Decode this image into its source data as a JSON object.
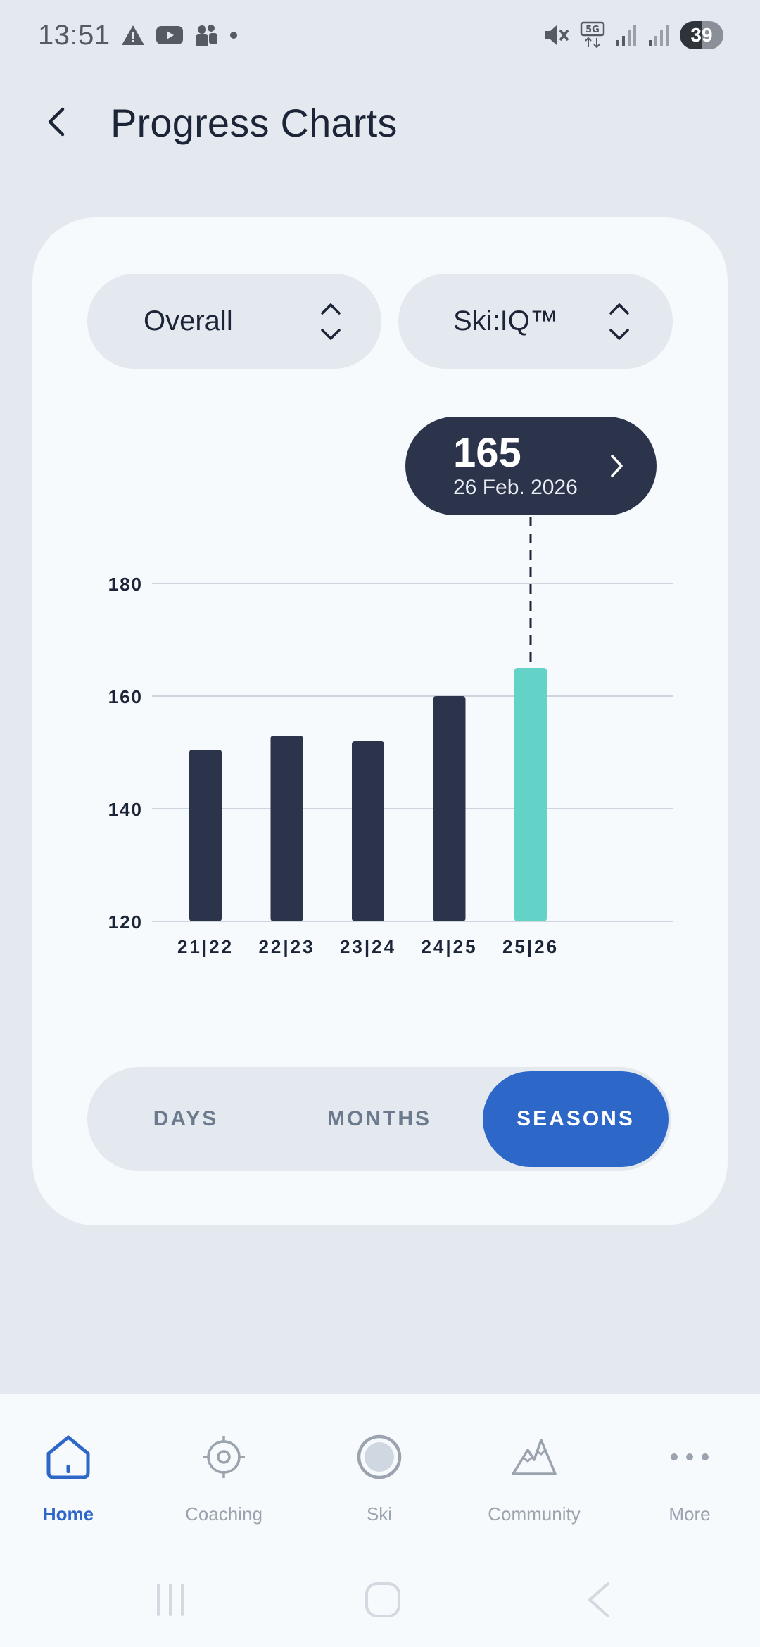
{
  "status_bar": {
    "time": "13:51",
    "left_icons": [
      "warning-icon",
      "youtube-icon",
      "teams-icon",
      "dot-icon"
    ],
    "right_icons": [
      "mute-icon",
      "5g-icon",
      "signal-icon",
      "signal-icon"
    ],
    "network": "5G",
    "battery": "39"
  },
  "header": {
    "title": "Progress Charts",
    "back_icon": "chevron-left-icon"
  },
  "selectors": {
    "category": "Overall",
    "metric": "Ski:IQ™"
  },
  "tooltip": {
    "value": "165",
    "date": "26 Feb. 2026"
  },
  "chart_data": {
    "type": "bar",
    "categories": [
      "21|22",
      "22|23",
      "23|24",
      "24|25",
      "25|26"
    ],
    "values": [
      150.5,
      153,
      152,
      160,
      165
    ],
    "ylim": [
      120,
      180
    ],
    "yticks": [
      "120",
      "140",
      "160",
      "180"
    ],
    "grid": true,
    "highlighted_index": 4,
    "colors": {
      "bar": "#2c344c",
      "highlight": "#62d3c6",
      "grid": "#cdd6df"
    }
  },
  "range_tabs": {
    "items": [
      "DAYS",
      "MONTHS",
      "SEASONS"
    ],
    "active": "SEASONS"
  },
  "bottom_nav": {
    "items": [
      {
        "label": "Home",
        "icon": "home-icon",
        "active": true
      },
      {
        "label": "Coaching",
        "icon": "target-icon",
        "active": false
      },
      {
        "label": "Ski",
        "icon": "record-icon",
        "active": false
      },
      {
        "label": "Community",
        "icon": "mountains-icon",
        "active": false
      },
      {
        "label": "More",
        "icon": "more-icon",
        "active": false
      }
    ]
  },
  "colors": {
    "accent": "#2d67c7",
    "background": "#e4e9ef",
    "card": "#f7fafd"
  }
}
